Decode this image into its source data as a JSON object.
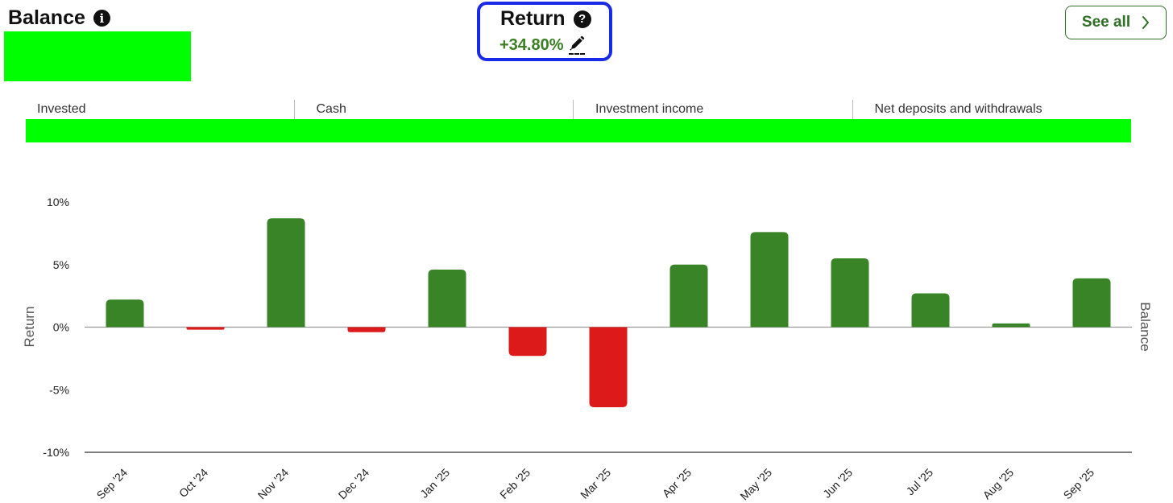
{
  "header": {
    "balance_title": "Balance",
    "return_title": "Return",
    "return_value": "+34.80%",
    "see_all_label": "See all"
  },
  "tabs": [
    {
      "label": "Invested"
    },
    {
      "label": "Cash"
    },
    {
      "label": "Investment income"
    },
    {
      "label": "Net deposits and withdrawals"
    }
  ],
  "colors": {
    "positive": "#3a8428",
    "negative": "#dd1a1a",
    "accent": "#2f6e25",
    "highlight_border": "#1a2be8",
    "redaction": "#00ff00"
  },
  "chart_data": {
    "type": "bar",
    "categories": [
      "Sep '24",
      "Oct '24",
      "Nov '24",
      "Dec '24",
      "Jan '25",
      "Feb '25",
      "Mar '25",
      "Apr '25",
      "May '25",
      "Jun '25",
      "Jul '25",
      "Aug '25",
      "Sep '25"
    ],
    "values": [
      2.2,
      -0.2,
      8.7,
      -0.4,
      4.6,
      -2.3,
      -6.4,
      5.0,
      7.6,
      5.5,
      2.7,
      0.3,
      3.9
    ],
    "ylabel": "Return",
    "y2label": "Balance",
    "ylim": [
      -10,
      10
    ],
    "yticks": [
      10,
      5,
      0,
      -5,
      -10
    ],
    "ytick_labels": [
      "10%",
      "5%",
      "0%",
      "-5%",
      "-10%"
    ],
    "grid": false
  }
}
